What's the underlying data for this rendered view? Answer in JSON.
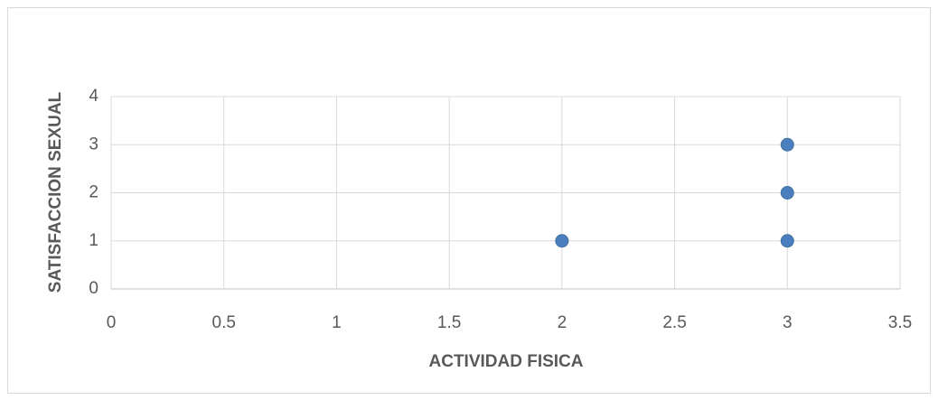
{
  "chart_data": {
    "type": "scatter",
    "x_label": "ACTIVIDAD FISICA",
    "y_label": "SATISFACCION SEXUAL",
    "x": [
      2,
      3,
      3,
      3
    ],
    "values": [
      1,
      1,
      2,
      3
    ],
    "color": "#4a7ebf",
    "xlim": [
      0,
      3.5
    ],
    "xticks": [
      0,
      0.5,
      1,
      1.5,
      2,
      2.5,
      3,
      3.5
    ],
    "ylim": [
      0,
      4
    ],
    "yticks": [
      0,
      1,
      2,
      3,
      4
    ],
    "grid": true
  }
}
